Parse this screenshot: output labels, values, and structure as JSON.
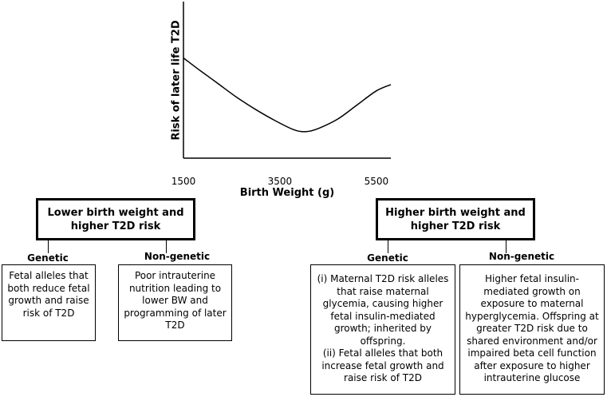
{
  "chart_data": {
    "type": "line",
    "ylabel": "Risk of later life T2D",
    "xlabel": "Birth Weight (g)",
    "x_ticks": [
      1500,
      3500,
      5500
    ],
    "xlim": [
      1500,
      5800
    ],
    "ylim": [
      0,
      1
    ],
    "series": [
      {
        "x": [
          1500,
          1800,
          2200,
          2600,
          3000,
          3400,
          3800,
          4050,
          4300,
          4700,
          5100,
          5500,
          5800
        ],
        "y": [
          0.64,
          0.57,
          0.48,
          0.39,
          0.31,
          0.24,
          0.18,
          0.17,
          0.19,
          0.25,
          0.34,
          0.43,
          0.47
        ]
      }
    ]
  },
  "left": {
    "header": "Lower birth weight and higher T2D risk",
    "genetic_label": "Genetic",
    "nongenetic_label": "Non-genetic",
    "genetic_text": "Fetal alleles that both reduce fetal growth and raise risk of T2D",
    "nongenetic_text": "Poor intrauterine nutrition leading to lower BW and programming of later T2D"
  },
  "right": {
    "header": "Higher birth weight and higher T2D risk",
    "genetic_label": "Genetic",
    "nongenetic_label": "Non-genetic",
    "genetic_text_1": "(i) Maternal T2D risk alleles that raise maternal glycemia, causing higher fetal insulin-mediated growth; inherited by offspring.",
    "genetic_text_2": "(ii) Fetal alleles that both increase fetal growth and raise risk of T2D",
    "nongenetic_text": "Higher fetal insulin-mediated growth on exposure to maternal hyperglycemia. Offspring at greater T2D risk due to shared environment and/or impaired beta cell function after exposure to higher intrauterine glucose"
  }
}
